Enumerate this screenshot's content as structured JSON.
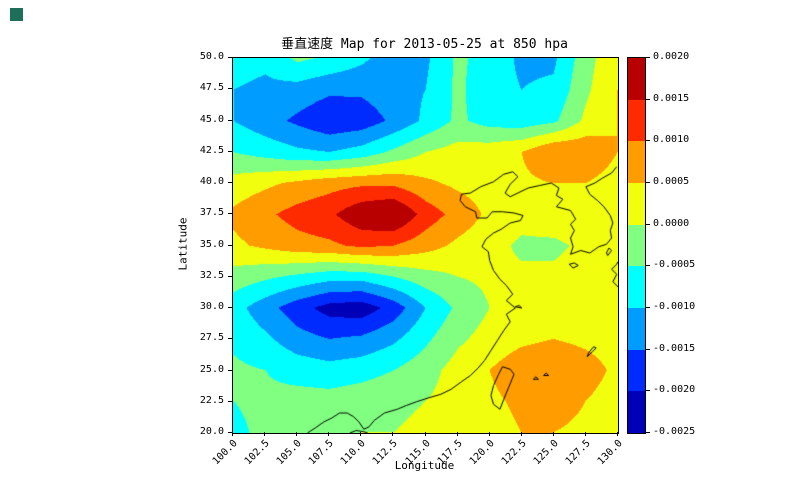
{
  "app_icon_color": "#1d6f5a",
  "chart_data": {
    "type": "heatmap",
    "title": "垂直速度 Map for 2013-05-25 at 850 hpa",
    "xlabel": "Longitude",
    "ylabel": "Latitude",
    "xlim": [
      100,
      130
    ],
    "ylim": [
      20,
      50
    ],
    "grid": false,
    "legend_position": "right-colorbar",
    "x_ticks": [
      "100.0",
      "102.5",
      "105.0",
      "107.5",
      "110.0",
      "112.5",
      "115.0",
      "117.5",
      "120.0",
      "122.5",
      "125.0",
      "127.5",
      "130.0"
    ],
    "y_ticks_top_to_bottom": [
      "50.0",
      "47.5",
      "45.0",
      "42.5",
      "40.0",
      "37.5",
      "35.0",
      "32.5",
      "30.0",
      "27.5",
      "25.0",
      "22.5",
      "20.0"
    ],
    "lons": [
      100,
      102.5,
      105,
      107.5,
      110,
      112.5,
      115,
      117.5,
      120,
      122.5,
      125,
      127.5,
      130
    ],
    "lats_top_to_bottom": [
      50,
      47.5,
      45,
      42.5,
      40,
      37.5,
      35,
      32.5,
      30,
      27.5,
      25,
      22.5,
      20
    ],
    "grid_rows_top_to_bottom": [
      [
        -0.0008,
        -0.0009,
        -0.0004,
        -0.0006,
        -0.0009,
        -0.0013,
        -0.0011,
        -0.0004,
        -0.0007,
        -0.0011,
        -0.0011,
        -0.0002,
        0.0004
      ],
      [
        -0.001,
        -0.0011,
        -0.0012,
        -0.0014,
        -0.0014,
        -0.0012,
        -0.001,
        -0.0004,
        -0.0008,
        -0.001,
        -0.0009,
        -0.0001,
        0.0005
      ],
      [
        -0.001,
        -0.0013,
        -0.0016,
        -0.0019,
        -0.0018,
        -0.0014,
        -0.0009,
        -0.0004,
        -0.0007,
        -0.0008,
        -0.0006,
        0.0001,
        0.0005
      ],
      [
        -0.0005,
        -0.0007,
        -0.0009,
        -0.001,
        -0.0008,
        -0.0004,
        0.0,
        0.0002,
        0.0003,
        0.0005,
        0.001,
        0.0009,
        0.0005
      ],
      [
        0.0002,
        0.0004,
        0.0006,
        0.0008,
        0.0009,
        0.0009,
        0.0006,
        0.0004,
        0.0003,
        0.0004,
        0.0005,
        0.0005,
        0.0003
      ],
      [
        0.0006,
        0.0009,
        0.0012,
        0.0014,
        0.0019,
        0.0021,
        0.0013,
        0.0008,
        0.0004,
        0.0002,
        0.0003,
        0.0003,
        0.0002
      ],
      [
        0.0004,
        0.0006,
        0.0008,
        0.0009,
        0.0011,
        0.001,
        0.0007,
        0.0004,
        0.0002,
        -0.0001,
        -0.0001,
        0.0001,
        0.0002
      ],
      [
        -0.0002,
        -0.0004,
        -0.0006,
        -0.0008,
        -0.0008,
        -0.0005,
        -0.0002,
        0.0,
        0.0001,
        0.0001,
        0.0001,
        0.0002,
        0.0001
      ],
      [
        -0.0008,
        -0.0013,
        -0.0018,
        -0.0022,
        -0.0023,
        -0.0018,
        -0.001,
        -0.0004,
        0.0,
        0.0002,
        0.0003,
        0.0002,
        0.0002
      ],
      [
        -0.0006,
        -0.0009,
        -0.0013,
        -0.0015,
        -0.0014,
        -0.0011,
        -0.0006,
        -0.0001,
        0.0002,
        0.0004,
        0.0005,
        0.0004,
        0.0003
      ],
      [
        -0.0004,
        -0.0005,
        -0.0007,
        -0.0008,
        -0.0007,
        -0.0005,
        -0.0002,
        0.0002,
        0.0005,
        0.0008,
        0.0009,
        0.0007,
        0.0004
      ],
      [
        -0.0005,
        -0.0004,
        -0.0003,
        -0.0003,
        -0.0002,
        -0.0001,
        0.0,
        0.0002,
        0.0004,
        0.0006,
        0.0007,
        0.0005,
        0.0003
      ],
      [
        -0.0006,
        -0.0004,
        -0.0002,
        -0.0001,
        0.0,
        0.0,
        0.0001,
        0.0002,
        0.0003,
        0.0005,
        0.0005,
        0.0004,
        0.0002
      ]
    ],
    "levels": [
      -0.0025,
      -0.002,
      -0.0015,
      -0.001,
      -0.0005,
      0.0,
      0.0005,
      0.001,
      0.0015,
      0.002
    ],
    "level_colors_low_to_high": [
      "#0000b8",
      "#002bff",
      "#009cff",
      "#00ffff",
      "#80ff80",
      "#f1ff0e",
      "#ff9c00",
      "#ff2b00",
      "#b80000"
    ],
    "colorbar_tick_labels_top_to_bottom": [
      "0.0020",
      "0.0015",
      "0.0010",
      "0.0005",
      "0.0000",
      "-0.0005",
      "-0.0010",
      "-0.0015",
      "-0.0020",
      "-0.0025"
    ],
    "coastlines": [
      [
        [
          105.8,
          20.0
        ],
        [
          106.4,
          20.4
        ],
        [
          107.1,
          20.9
        ],
        [
          107.7,
          21.2
        ],
        [
          108.3,
          21.6
        ],
        [
          108.9,
          21.6
        ],
        [
          109.4,
          21.3
        ],
        [
          109.8,
          20.9
        ],
        [
          110.2,
          20.3
        ],
        [
          110.6,
          20.5
        ],
        [
          111.0,
          21.0
        ],
        [
          111.8,
          21.6
        ],
        [
          112.8,
          21.9
        ],
        [
          113.5,
          22.2
        ],
        [
          114.3,
          22.5
        ],
        [
          115.2,
          22.8
        ],
        [
          116.2,
          23.1
        ],
        [
          117.0,
          23.5
        ],
        [
          117.8,
          24.1
        ],
        [
          118.5,
          24.6
        ],
        [
          119.1,
          25.2
        ],
        [
          119.6,
          25.8
        ],
        [
          120.1,
          26.6
        ],
        [
          120.6,
          27.4
        ],
        [
          121.1,
          28.2
        ],
        [
          121.6,
          28.9
        ],
        [
          121.3,
          29.5
        ],
        [
          122.0,
          30.0
        ],
        [
          121.3,
          30.6
        ],
        [
          121.8,
          31.1
        ],
        [
          121.3,
          31.8
        ],
        [
          120.8,
          32.3
        ],
        [
          120.3,
          33.0
        ],
        [
          120.0,
          33.8
        ],
        [
          119.9,
          34.5
        ],
        [
          119.4,
          34.9
        ],
        [
          119.7,
          35.5
        ],
        [
          120.3,
          36.0
        ],
        [
          120.9,
          36.3
        ],
        [
          121.6,
          36.8
        ],
        [
          122.4,
          37.0
        ],
        [
          122.6,
          37.4
        ],
        [
          121.9,
          37.6
        ],
        [
          121.0,
          37.7
        ],
        [
          120.2,
          37.7
        ],
        [
          119.8,
          37.2
        ],
        [
          119.0,
          37.2
        ],
        [
          118.9,
          37.7
        ],
        [
          118.1,
          38.1
        ],
        [
          117.7,
          38.6
        ],
        [
          117.8,
          39.1
        ],
        [
          118.5,
          39.2
        ],
        [
          119.3,
          39.7
        ],
        [
          120.3,
          40.1
        ],
        [
          121.1,
          40.7
        ],
        [
          121.8,
          40.9
        ],
        [
          122.2,
          40.5
        ],
        [
          121.6,
          39.9
        ],
        [
          121.2,
          39.2
        ],
        [
          121.6,
          38.9
        ],
        [
          122.2,
          39.2
        ],
        [
          123.0,
          39.6
        ],
        [
          123.9,
          39.8
        ],
        [
          124.8,
          40.0
        ]
      ],
      [
        [
          124.8,
          40.0
        ],
        [
          125.4,
          39.6
        ],
        [
          125.2,
          39.0
        ],
        [
          125.7,
          38.7
        ],
        [
          125.2,
          38.1
        ],
        [
          126.3,
          37.8
        ],
        [
          126.7,
          37.1
        ],
        [
          126.3,
          36.7
        ],
        [
          126.6,
          36.2
        ],
        [
          126.3,
          35.6
        ],
        [
          126.5,
          34.9
        ],
        [
          126.3,
          34.3
        ],
        [
          127.1,
          34.6
        ],
        [
          127.8,
          34.4
        ],
        [
          128.5,
          34.9
        ],
        [
          129.1,
          35.1
        ],
        [
          129.5,
          35.6
        ],
        [
          129.4,
          36.2
        ],
        [
          129.6,
          36.8
        ],
        [
          129.4,
          37.4
        ],
        [
          128.9,
          38.1
        ],
        [
          128.4,
          38.6
        ],
        [
          127.8,
          39.1
        ],
        [
          127.5,
          39.7
        ],
        [
          128.2,
          40.0
        ],
        [
          128.8,
          40.4
        ],
        [
          129.5,
          40.8
        ],
        [
          129.9,
          41.3
        ]
      ],
      [
        [
          121.0,
          25.3
        ],
        [
          121.6,
          25.1
        ],
        [
          121.9,
          24.7
        ],
        [
          121.5,
          23.7
        ],
        [
          121.1,
          22.7
        ],
        [
          120.8,
          21.9
        ],
        [
          120.3,
          22.3
        ],
        [
          120.1,
          23.0
        ],
        [
          120.3,
          23.8
        ],
        [
          120.7,
          24.7
        ],
        [
          121.0,
          25.3
        ]
      ],
      [
        [
          109.1,
          20.0
        ],
        [
          109.6,
          20.2
        ],
        [
          110.2,
          20.1
        ],
        [
          110.5,
          20.0
        ]
      ],
      [
        [
          126.2,
          33.5
        ],
        [
          126.6,
          33.6
        ],
        [
          126.9,
          33.4
        ],
        [
          126.5,
          33.2
        ],
        [
          126.2,
          33.5
        ]
      ],
      [
        [
          130.0,
          31.7
        ],
        [
          129.6,
          32.1
        ],
        [
          129.9,
          32.7
        ],
        [
          129.5,
          33.1
        ],
        [
          129.9,
          33.5
        ],
        [
          130.0,
          33.7
        ]
      ],
      [
        [
          129.2,
          34.2
        ],
        [
          129.5,
          34.6
        ],
        [
          129.3,
          34.8
        ],
        [
          129.1,
          34.4
        ],
        [
          129.2,
          34.2
        ]
      ],
      [
        [
          127.6,
          26.1
        ],
        [
          128.0,
          26.5
        ],
        [
          128.3,
          26.8
        ],
        [
          128.1,
          26.9
        ],
        [
          127.7,
          26.4
        ],
        [
          127.6,
          26.1
        ]
      ],
      [
        [
          124.2,
          24.6
        ],
        [
          124.4,
          24.8
        ],
        [
          124.6,
          24.6
        ],
        [
          124.2,
          24.6
        ]
      ],
      [
        [
          123.4,
          24.3
        ],
        [
          123.6,
          24.5
        ],
        [
          123.8,
          24.3
        ],
        [
          123.4,
          24.3
        ]
      ],
      [
        [
          122.0,
          30.1
        ],
        [
          122.3,
          30.2
        ],
        [
          122.5,
          30.0
        ],
        [
          122.0,
          30.1
        ]
      ]
    ]
  }
}
